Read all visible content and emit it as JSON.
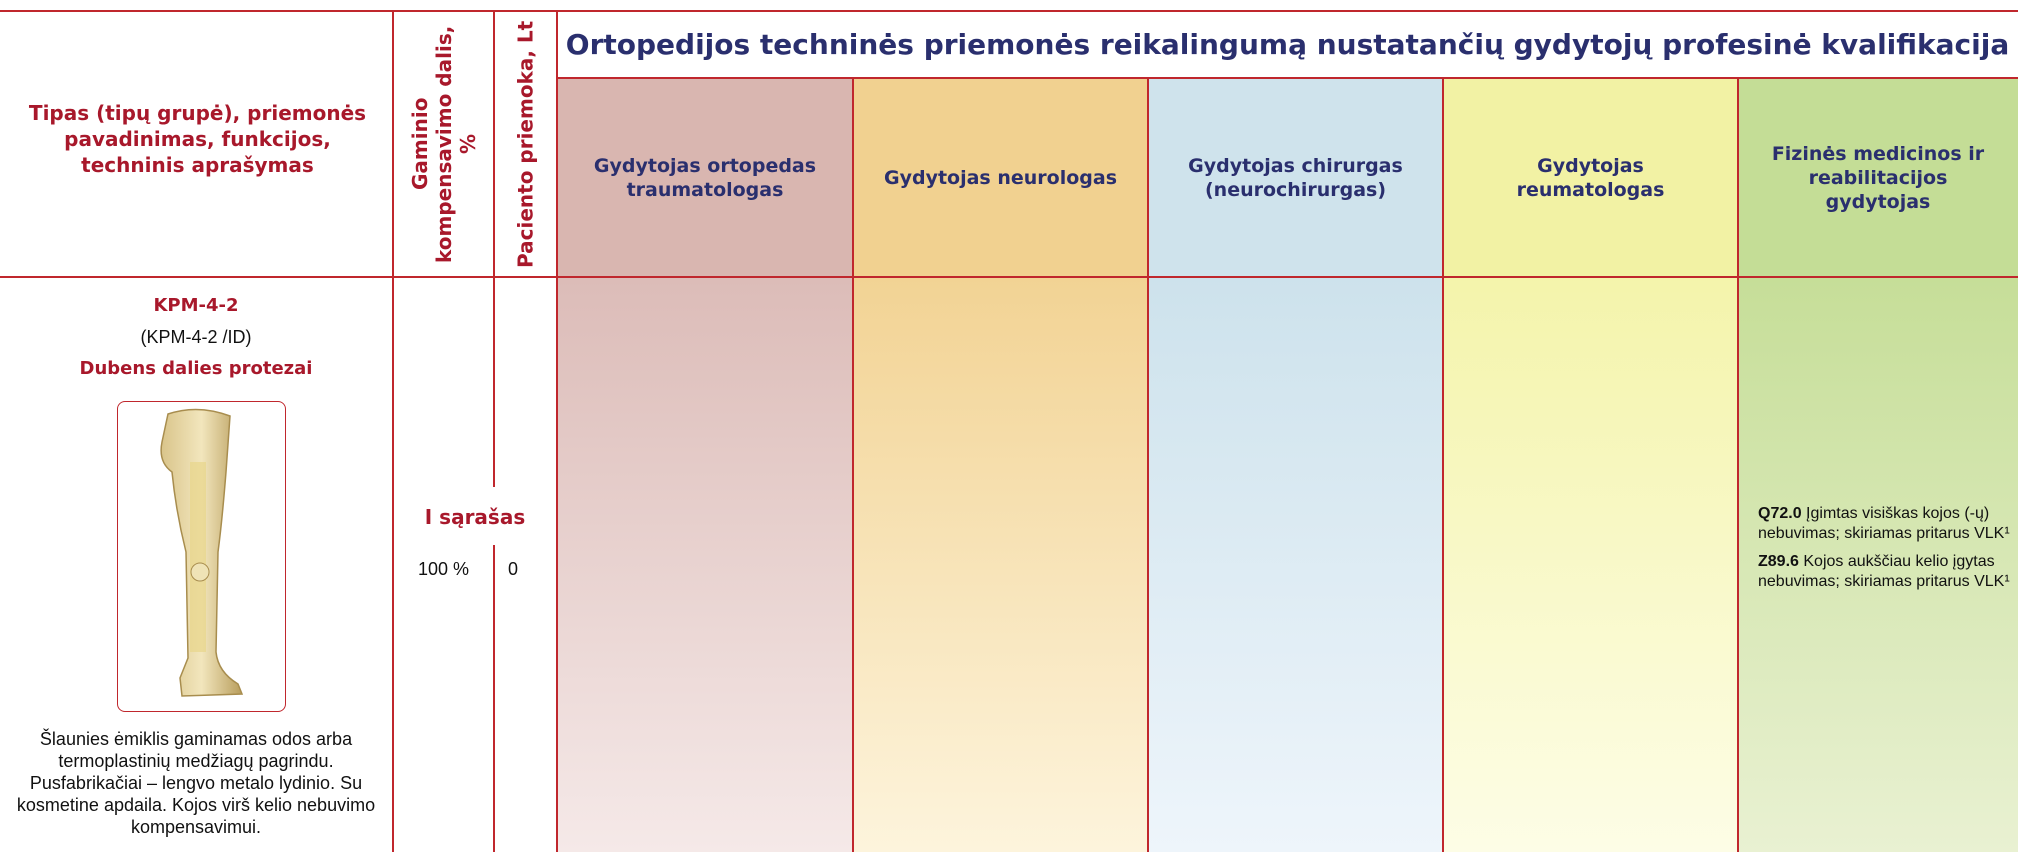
{
  "table": {
    "headers": {
      "type_column": "Tipas (tipų grupė), priemonės pavadinimas, funkcijos, techninis aprašymas",
      "compensation": "Gaminio kompensavimo dalis, %",
      "patient_payment": "Paciento priemoka, Lt",
      "qualification_title": "Ortopedijos techninės priemonės reikalingumą nustatančių gydytojų profesinė kvalifikacija",
      "doctors": [
        "Gydytojas ortopedas traumatologas",
        "Gydytojas neurologas",
        "Gydytojas chirurgas (neurochirurgas)",
        "Gydytojas reumatologas",
        "Fizinės medicinos ir reabilitacijos gydytojas"
      ]
    },
    "row": {
      "code": "KPM-4-2",
      "sub_code": "(KPM-4-2 /ID)",
      "name": "Dubens dalies protezai",
      "description": "Šlaunies ėmiklis gaminamas odos arba termoplastinių medžiagų pagrindu. Pusfabrikačiai – lengvo metalo lydinio. Su kosmetine apdaila. Kojos virš kelio nebuvimo kompensavimui.",
      "list": "I sąrašas",
      "compensation": "100 %",
      "patient_payment": "0",
      "rehab_notes": [
        {
          "code": "Q72.0",
          "text": "Įgimtas visiškas kojos (-ų) nebuvimas; skiriamas pritarus VLK¹"
        },
        {
          "code": "Z89.6",
          "text": "Kojos aukščiau kelio įgytas nebuvimas; skiriamas pritarus VLK¹"
        }
      ]
    }
  }
}
